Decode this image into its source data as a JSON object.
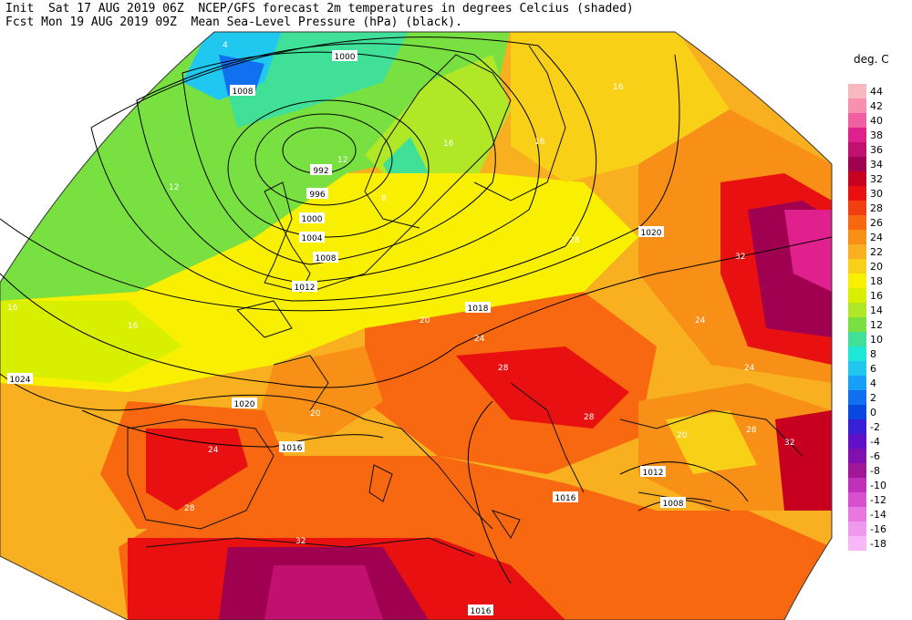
{
  "header": {
    "line1": "Init  Sat 17 AUG 2019 06Z  NCEP/GFS forecast 2m temperatures in degrees Celcius (shaded)",
    "line2": "Fcst Mon 19 AUG 2019 09Z  Mean Sea-Level Pressure (hPa) (black)."
  },
  "legend": {
    "unit": "deg. C",
    "levels": [
      {
        "label": "44",
        "color": "#f8b8c0"
      },
      {
        "label": "42",
        "color": "#f890b0"
      },
      {
        "label": "40",
        "color": "#f060a0"
      },
      {
        "label": "38",
        "color": "#e0208c"
      },
      {
        "label": "36",
        "color": "#c01070"
      },
      {
        "label": "34",
        "color": "#a00050"
      },
      {
        "label": "32",
        "color": "#c80020"
      },
      {
        "label": "30",
        "color": "#e81010"
      },
      {
        "label": "28",
        "color": "#f04010"
      },
      {
        "label": "26",
        "color": "#f86810"
      },
      {
        "label": "24",
        "color": "#f89018"
      },
      {
        "label": "22",
        "color": "#f8b020"
      },
      {
        "label": "20",
        "color": "#f8d018"
      },
      {
        "label": "18",
        "color": "#f8f000"
      },
      {
        "label": "16",
        "color": "#d8f000"
      },
      {
        "label": "14",
        "color": "#b0e828"
      },
      {
        "label": "12",
        "color": "#78e040"
      },
      {
        "label": "10",
        "color": "#40e098"
      },
      {
        "label": "8",
        "color": "#20e8d8"
      },
      {
        "label": "6",
        "color": "#20c8f0"
      },
      {
        "label": "4",
        "color": "#18a0f8"
      },
      {
        "label": "2",
        "color": "#1070f0"
      },
      {
        "label": "0",
        "color": "#0848e0"
      },
      {
        "label": "-2",
        "color": "#3820d8"
      },
      {
        "label": "-4",
        "color": "#6010c8"
      },
      {
        "label": "-6",
        "color": "#8010b0"
      },
      {
        "label": "-8",
        "color": "#a01898"
      },
      {
        "label": "-10",
        "color": "#c030b8"
      },
      {
        "label": "-12",
        "color": "#d850d0"
      },
      {
        "label": "-14",
        "color": "#e878e0"
      },
      {
        "label": "-16",
        "color": "#f098f0"
      },
      {
        "label": "-18",
        "color": "#f8b8f8"
      }
    ]
  },
  "map": {
    "isobar_labels": [
      "1000",
      "1008",
      "992",
      "996",
      "1000",
      "1004",
      "1008",
      "1012",
      "1016",
      "1020",
      "1024",
      "1018",
      "1020",
      "1016",
      "1012",
      "1008",
      "1016"
    ],
    "temp_labels": [
      "4",
      "12",
      "8",
      "12",
      "16",
      "16",
      "20",
      "24",
      "28",
      "32",
      "24",
      "20",
      "28",
      "32",
      "24",
      "28",
      "32",
      "28",
      "24",
      "20",
      "28",
      "16",
      "16",
      "16"
    ]
  }
}
